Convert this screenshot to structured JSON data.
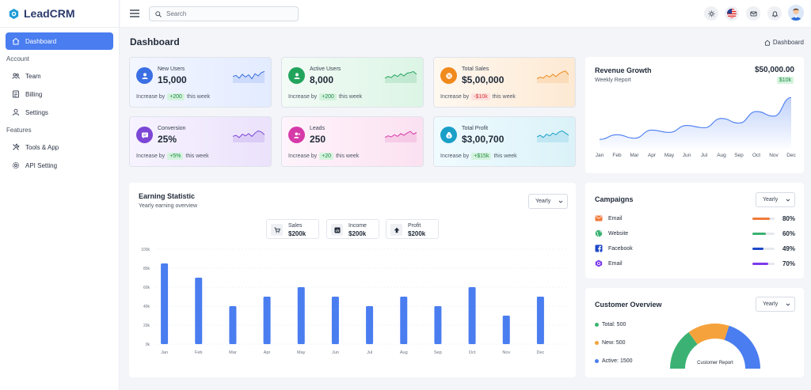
{
  "app": {
    "name": "LeadCRM"
  },
  "sidebar": {
    "items": [
      {
        "label": "Dashboard"
      },
      {
        "label": "Team"
      },
      {
        "label": "Billing"
      },
      {
        "label": "Settings"
      },
      {
        "label": "Tools & App"
      },
      {
        "label": "API Setting"
      }
    ],
    "sections": [
      "Account",
      "Features"
    ]
  },
  "topbar": {
    "search_placeholder": "Search"
  },
  "page": {
    "title": "Dashboard",
    "breadcrumb": "Dashboard"
  },
  "stats": [
    {
      "label": "New Users",
      "value": "15,000",
      "prefix": "Increase by",
      "delta": "+200",
      "suffix": "this week",
      "color": "#3b6fe3",
      "trend": "up"
    },
    {
      "label": "Active Users",
      "value": "8,000",
      "prefix": "Increase by",
      "delta": "+200",
      "suffix": "this week",
      "color": "#22a45d",
      "trend": "up"
    },
    {
      "label": "Total Sales",
      "value": "$5,00,000",
      "prefix": "Increase by",
      "delta": "-$10k",
      "suffix": "this week",
      "color": "#f08a1c",
      "trend": "down"
    },
    {
      "label": "Conversion",
      "value": "25%",
      "prefix": "Increase by",
      "delta": "+5%",
      "suffix": "this week",
      "color": "#7c46d6",
      "trend": "up"
    },
    {
      "label": "Leads",
      "value": "250",
      "prefix": "Increase by",
      "delta": "+20",
      "suffix": "this week",
      "color": "#d63aa8",
      "trend": "up"
    },
    {
      "label": "Total Profit",
      "value": "$3,00,700",
      "prefix": "Increase by",
      "delta": "+$15k",
      "suffix": "this week",
      "color": "#1aa0c8",
      "trend": "up"
    }
  ],
  "revenue": {
    "title": "Revenue Growth",
    "subtitle": "Weekly Report",
    "amount": "$50,000.00",
    "badge": "$10k"
  },
  "earning": {
    "title": "Earning Statistic",
    "subtitle": "Yearly earning overview",
    "period": "Yearly",
    "summary": [
      {
        "label": "Sales",
        "value": "$200k"
      },
      {
        "label": "Income",
        "value": "$200k"
      },
      {
        "label": "Profit",
        "value": "$200k"
      }
    ]
  },
  "campaigns": {
    "title": "Campaigns",
    "period": "Yearly",
    "items": [
      {
        "label": "Email",
        "pct": "80%",
        "value": 0.8,
        "color": "#f07a3a",
        "icon": "email-icon"
      },
      {
        "label": "Website",
        "pct": "60%",
        "value": 0.6,
        "color": "#3bb273",
        "icon": "website-icon"
      },
      {
        "label": "Facebook",
        "pct": "49%",
        "value": 0.49,
        "color": "#1f49c9",
        "icon": "facebook-icon"
      },
      {
        "label": "Email",
        "pct": "70%",
        "value": 0.7,
        "color": "#7c3aed",
        "icon": "email-icon"
      }
    ]
  },
  "customer": {
    "title": "Customer Overview",
    "period": "Yearly",
    "legend": [
      {
        "label": "Total: 500",
        "color": "#3bb273"
      },
      {
        "label": "New: 500",
        "color": "#f6a23c"
      },
      {
        "label": "Active: 1500",
        "color": "#4a7df0"
      }
    ],
    "center_label": "Customer Report"
  },
  "chart_data": [
    {
      "type": "area",
      "x": [
        "Jan",
        "Feb",
        "Mar",
        "Apr",
        "May",
        "Jun",
        "Jul",
        "Aug",
        "Sep",
        "Oct",
        "Nov",
        "Dec"
      ],
      "values": [
        4,
        6,
        4.5,
        8,
        7,
        10,
        9,
        13,
        11,
        16,
        14,
        22
      ],
      "color": "#4a7df0",
      "grid": false,
      "title": "Revenue Growth"
    },
    {
      "type": "bar",
      "categories": [
        "Jan",
        "Feb",
        "Mar",
        "Apr",
        "May",
        "Jun",
        "Jul",
        "Aug",
        "Sep",
        "Oct",
        "Nov",
        "Dec"
      ],
      "values": [
        85000,
        70000,
        40000,
        50000,
        60000,
        50000,
        40000,
        50000,
        40000,
        60000,
        30000,
        50000
      ],
      "yticks": [
        "0k",
        "20k",
        "40k",
        "60k",
        "80k",
        "100k"
      ],
      "ylim": [
        0,
        100000
      ],
      "color": "#4a7df0",
      "grid": true,
      "title": "Earning Statistic"
    },
    {
      "type": "pie",
      "categories": [
        "Total",
        "New",
        "Active"
      ],
      "values": [
        500,
        500,
        1500
      ],
      "colors": [
        "#3bb273",
        "#f6a23c",
        "#4a7df0"
      ],
      "title": "Customer Overview"
    }
  ]
}
